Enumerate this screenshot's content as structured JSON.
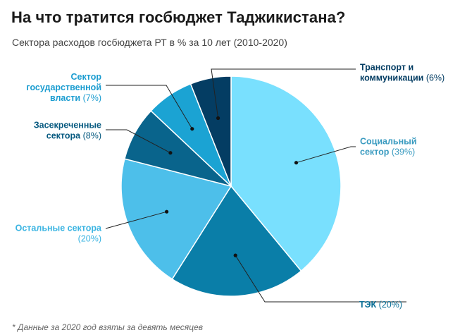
{
  "header": {
    "title": "На что тратится госбюджет Таджикистана?",
    "subtitle": "Сектора расходов госбюджета РТ в % за 10 лет (2010-2020)"
  },
  "footnote": "* Данные за 2020 год взяты за девять месяцев",
  "chart_data": {
    "type": "pie",
    "title": "На что тратится госбюджет Таджикистана?",
    "subtitle": "Сектора расходов госбюджета РТ в % за 10 лет (2010-2020)",
    "unit": "%",
    "slices": [
      {
        "name": "Социальный сектор",
        "value": 39,
        "label_lines": [
          "Социальный",
          "сектор (39%)"
        ],
        "color": "#79e0fe",
        "label_color": "#3a9bc0"
      },
      {
        "name": "ТЭК",
        "value": 20,
        "label_lines": [
          "ТЭК (20%)"
        ],
        "color": "#0a7ea8",
        "label_color": "#0a6f96"
      },
      {
        "name": "Остальные сектора",
        "value": 20,
        "label_lines": [
          "Остальные сектора",
          "(20%)"
        ],
        "color": "#4dbfea",
        "label_color": "#3ab4e2"
      },
      {
        "name": "Засекреченные сектора",
        "value": 8,
        "label_lines": [
          "Засекреченные",
          "сектора (8%)"
        ],
        "color": "#09648c",
        "label_color": "#075a80"
      },
      {
        "name": "Сектор государственной власти",
        "value": 7,
        "label_lines": [
          "Сектор",
          "государственной",
          "власти (7%)"
        ],
        "color": "#1ba3d3",
        "label_color": "#1a9cd0"
      },
      {
        "name": "Транспорт и коммуникации",
        "value": 6,
        "label_lines": [
          "Транспорт и",
          "коммуникации (6%)"
        ],
        "color": "#043d63",
        "label_color": "#043d63"
      }
    ]
  }
}
